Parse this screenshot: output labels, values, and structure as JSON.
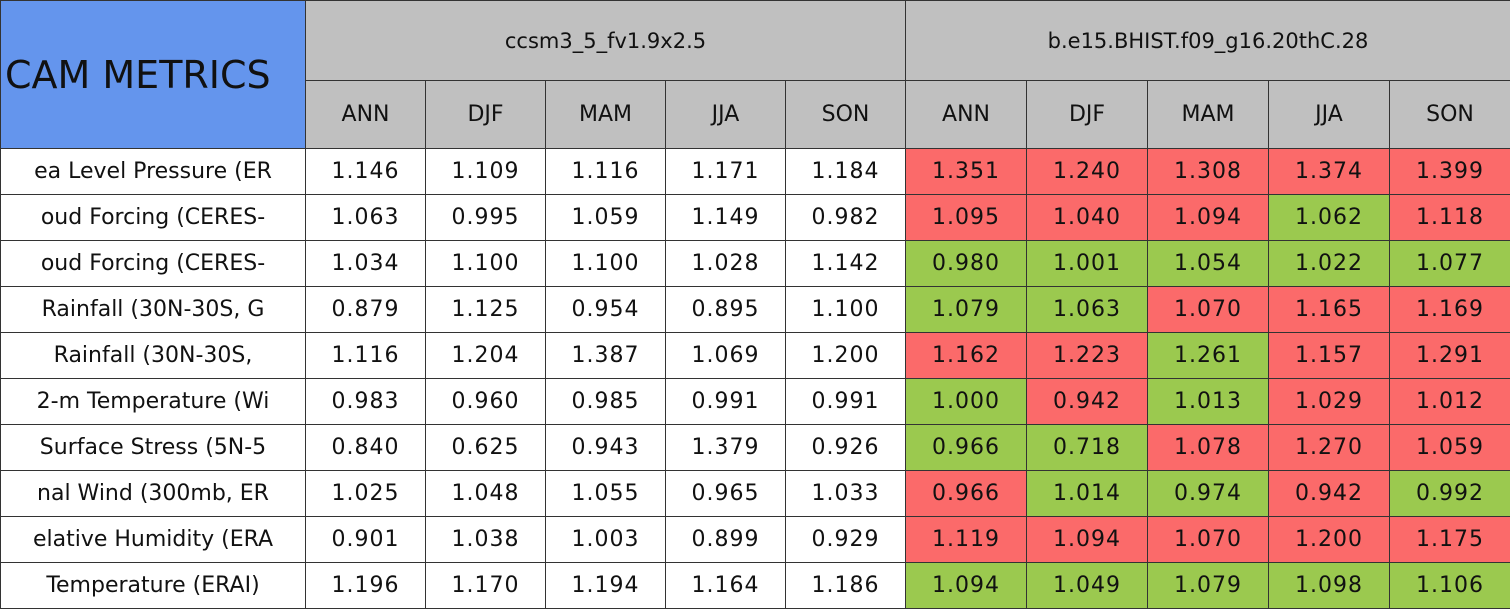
{
  "table": {
    "title": "CAM METRICS",
    "groups": [
      "ccsm3_5_fv1.9x2.5",
      "b.e15.BHIST.f09_g16.20thC.28"
    ],
    "seasons": [
      [
        "ANN",
        "DJF",
        "MAM",
        "JJA",
        "SON"
      ],
      [
        "ANN",
        "DJF",
        "MAM",
        "JJA",
        "SON"
      ]
    ],
    "colors": {
      "header": "#c0c0c0",
      "title": "#6495ed",
      "worse": "#fb6a6a",
      "better": "#9bc94f",
      "plain": "#ffffff"
    },
    "rows": [
      {
        "label": "ea Level Pressure (ER",
        "values": [
          [
            "1.146",
            "1.109",
            "1.116",
            "1.171",
            "1.184"
          ],
          [
            "1.351",
            "1.240",
            "1.308",
            "1.374",
            "1.399"
          ]
        ],
        "status": [
          "worse",
          "worse",
          "worse",
          "worse",
          "worse"
        ]
      },
      {
        "label": "oud Forcing (CERES-",
        "values": [
          [
            "1.063",
            "0.995",
            "1.059",
            "1.149",
            "0.982"
          ],
          [
            "1.095",
            "1.040",
            "1.094",
            "1.062",
            "1.118"
          ]
        ],
        "status": [
          "worse",
          "worse",
          "worse",
          "better",
          "worse"
        ]
      },
      {
        "label": "oud Forcing (CERES-",
        "values": [
          [
            "1.034",
            "1.100",
            "1.100",
            "1.028",
            "1.142"
          ],
          [
            "0.980",
            "1.001",
            "1.054",
            "1.022",
            "1.077"
          ]
        ],
        "status": [
          "better",
          "better",
          "better",
          "better",
          "better"
        ]
      },
      {
        "label": "Rainfall (30N-30S, G",
        "values": [
          [
            "0.879",
            "1.125",
            "0.954",
            "0.895",
            "1.100"
          ],
          [
            "1.079",
            "1.063",
            "1.070",
            "1.165",
            "1.169"
          ]
        ],
        "status": [
          "better",
          "better",
          "worse",
          "worse",
          "worse"
        ]
      },
      {
        "label": "Rainfall (30N-30S,",
        "values": [
          [
            "1.116",
            "1.204",
            "1.387",
            "1.069",
            "1.200"
          ],
          [
            "1.162",
            "1.223",
            "1.261",
            "1.157",
            "1.291"
          ]
        ],
        "status": [
          "worse",
          "worse",
          "better",
          "worse",
          "worse"
        ]
      },
      {
        "label": "2-m Temperature (Wi",
        "values": [
          [
            "0.983",
            "0.960",
            "0.985",
            "0.991",
            "0.991"
          ],
          [
            "1.000",
            "0.942",
            "1.013",
            "1.029",
            "1.012"
          ]
        ],
        "status": [
          "better",
          "worse",
          "better",
          "worse",
          "worse"
        ]
      },
      {
        "label": "Surface Stress (5N-5",
        "values": [
          [
            "0.840",
            "0.625",
            "0.943",
            "1.379",
            "0.926"
          ],
          [
            "0.966",
            "0.718",
            "1.078",
            "1.270",
            "1.059"
          ]
        ],
        "status": [
          "better",
          "better",
          "worse",
          "worse",
          "worse"
        ]
      },
      {
        "label": "nal Wind (300mb, ER",
        "values": [
          [
            "1.025",
            "1.048",
            "1.055",
            "0.965",
            "1.033"
          ],
          [
            "0.966",
            "1.014",
            "0.974",
            "0.942",
            "0.992"
          ]
        ],
        "status": [
          "worse",
          "better",
          "better",
          "worse",
          "better"
        ]
      },
      {
        "label": "elative Humidity (ERA",
        "values": [
          [
            "0.901",
            "1.038",
            "1.003",
            "0.899",
            "0.929"
          ],
          [
            "1.119",
            "1.094",
            "1.070",
            "1.200",
            "1.175"
          ]
        ],
        "status": [
          "worse",
          "worse",
          "worse",
          "worse",
          "worse"
        ]
      },
      {
        "label": "Temperature (ERAI)",
        "values": [
          [
            "1.196",
            "1.170",
            "1.194",
            "1.164",
            "1.186"
          ],
          [
            "1.094",
            "1.049",
            "1.079",
            "1.098",
            "1.106"
          ]
        ],
        "status": [
          "better",
          "better",
          "better",
          "better",
          "better"
        ]
      }
    ]
  }
}
